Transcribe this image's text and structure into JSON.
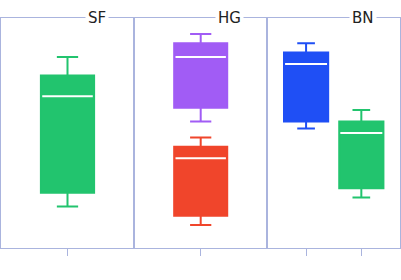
{
  "chart_data": [
    {
      "type": "box",
      "title": "SF",
      "xlim": [
        -1,
        1
      ],
      "ylim": [
        0,
        100
      ],
      "tick_labels": false,
      "series": [
        {
          "color": "#22c46e",
          "x": 0,
          "lowerfence": 18,
          "q1": 24,
          "median": 66,
          "q3": 75,
          "upperfence": 83
        }
      ]
    },
    {
      "type": "box",
      "title": "HG",
      "xlim": [
        -1,
        1
      ],
      "ylim": [
        0,
        100
      ],
      "tick_labels": false,
      "series": [
        {
          "color": "#a15cf5",
          "x": 0,
          "lowerfence": 55,
          "q1": 61,
          "median": 83,
          "q3": 89,
          "upperfence": 93
        },
        {
          "color": "#f0452b",
          "x": 0,
          "lowerfence": 10,
          "q1": 14,
          "median": 39,
          "q3": 44,
          "upperfence": 48
        }
      ]
    },
    {
      "type": "box",
      "title": "BN",
      "xlim": [
        -0.7,
        1.7
      ],
      "ylim": [
        0,
        100
      ],
      "tick_labels": false,
      "series": [
        {
          "color": "#1f4ff5",
          "x": 0,
          "lowerfence": 52,
          "q1": 55,
          "median": 80,
          "q3": 85,
          "upperfence": 89
        },
        {
          "color": "#22c46e",
          "x": 1,
          "lowerfence": 22,
          "q1": 26,
          "median": 50,
          "q3": 55,
          "upperfence": 60
        }
      ]
    }
  ]
}
